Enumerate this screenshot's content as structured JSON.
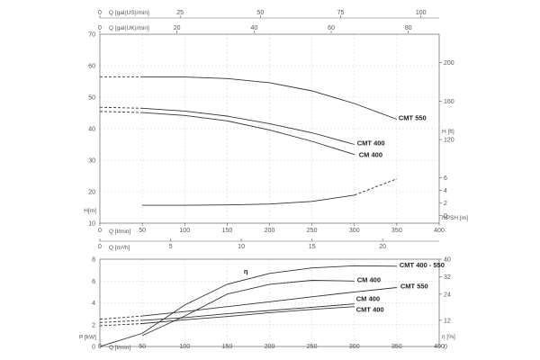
{
  "chart_data": [
    {
      "type": "line",
      "name": "head-npsh-chart",
      "top_axes": [
        {
          "label": "Q [gal(US)/min]",
          "ticks": [
            0,
            25,
            50,
            75,
            100
          ],
          "range": [
            0,
            105.7
          ]
        },
        {
          "label": "Q [gal(UK)/min]",
          "ticks": [
            0,
            20,
            40,
            60,
            80
          ],
          "range": [
            0,
            88.0
          ]
        }
      ],
      "xlabel": "Q [l/min]",
      "x_ticks": [
        0,
        50,
        100,
        150,
        200,
        250,
        300,
        350,
        400
      ],
      "xlim": [
        0,
        400
      ],
      "ylabel": "H[m]",
      "y_ticks": [
        10,
        20,
        30,
        40,
        50,
        60,
        70
      ],
      "ylim": [
        10,
        70
      ],
      "right_axes": [
        {
          "label": "H [ft]",
          "ticks": [
            120,
            160,
            200
          ],
          "range": [
            32.8,
            229.7
          ]
        },
        {
          "label": "NPSH [m]",
          "ticks": [
            0,
            2,
            4,
            6
          ],
          "range": [
            0,
            6
          ]
        }
      ],
      "series": [
        {
          "name": "CMT 550",
          "axis": "H",
          "x": [
            0,
            50,
            100,
            150,
            200,
            250,
            300,
            350
          ],
          "y": [
            56.5,
            56.5,
            56.4,
            55.9,
            54.6,
            52.0,
            48.0,
            43.0
          ],
          "extrapolated_below": 50
        },
        {
          "name": "CMT 400",
          "axis": "H",
          "x": [
            0,
            50,
            100,
            150,
            200,
            250,
            300
          ],
          "y": [
            46.8,
            46.5,
            45.6,
            44.0,
            41.6,
            38.7,
            35.0
          ],
          "extrapolated_below": 50
        },
        {
          "name": "CM 400",
          "axis": "H",
          "x": [
            0,
            50,
            100,
            150,
            200,
            250,
            300
          ],
          "y": [
            45.5,
            45.1,
            44.2,
            42.5,
            39.6,
            36.0,
            31.8
          ],
          "extrapolated_below": 50
        },
        {
          "name": "",
          "axis": "NPSH",
          "x": [
            50,
            100,
            150,
            200,
            250,
            300,
            350
          ],
          "y": [
            1.6,
            1.6,
            1.65,
            1.8,
            2.2,
            3.2,
            5.8
          ],
          "extrapolated_above": 300
        }
      ]
    },
    {
      "type": "line",
      "name": "power-efficiency-chart",
      "top_axis": {
        "label": "Q [m³/h]",
        "ticks": [
          0,
          5,
          10,
          15,
          20
        ],
        "range": [
          0,
          24
        ]
      },
      "xlabel": "Q [l/min]",
      "x_ticks": [
        0,
        50,
        100,
        150,
        200,
        250,
        300,
        350,
        400
      ],
      "xlim": [
        0,
        400
      ],
      "ylabel": "P [kW]",
      "y_ticks": [
        0,
        2,
        4,
        6,
        8
      ],
      "ylim": [
        0,
        8
      ],
      "right_axis": {
        "label": "η [%]",
        "ticks": [
          0,
          12,
          24,
          32,
          40
        ],
        "range": [
          0,
          40
        ]
      },
      "annotation": "η",
      "series": [
        {
          "name": "CMT 400 - 550",
          "axis": "eta",
          "x": [
            0,
            50,
            100,
            150,
            200,
            250,
            300,
            350
          ],
          "y": [
            0,
            6.0,
            19.0,
            28.5,
            33.5,
            36.0,
            37.0,
            36.8
          ]
        },
        {
          "name": "CM 400",
          "axis": "eta",
          "x": [
            50,
            100,
            150,
            200,
            250,
            300
          ],
          "y": [
            5.0,
            14.0,
            24.0,
            28.5,
            30.3,
            30.0
          ]
        },
        {
          "name": "CMT 550",
          "axis": "P",
          "x": [
            0,
            50,
            100,
            150,
            200,
            250,
            300,
            350
          ],
          "y": [
            2.5,
            2.8,
            3.2,
            3.65,
            4.1,
            4.55,
            5.0,
            5.4
          ],
          "extrapolated_below": 50
        },
        {
          "name": "CM 400",
          "axis": "P",
          "x": [
            0,
            50,
            100,
            150,
            200,
            250,
            300
          ],
          "y": [
            2.2,
            2.4,
            2.65,
            3.0,
            3.3,
            3.6,
            3.9
          ],
          "extrapolated_below": 50
        },
        {
          "name": "CMT 400",
          "axis": "P",
          "x": [
            0,
            50,
            100,
            150,
            200,
            250,
            300
          ],
          "y": [
            1.9,
            2.1,
            2.45,
            2.75,
            3.1,
            3.4,
            3.65
          ],
          "extrapolated_below": 50
        }
      ]
    }
  ]
}
